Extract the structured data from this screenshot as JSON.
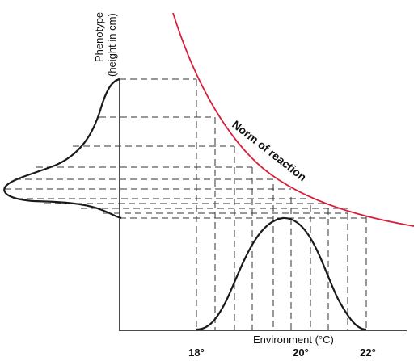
{
  "labels": {
    "y_axis_line1": "Phenotype",
    "y_axis_line2": "(height in cm)",
    "x_axis": "Environment (°C)",
    "curve_label": "Norm of reaction"
  },
  "ticks": [
    "18°",
    "20°",
    "22°"
  ],
  "colors": {
    "norm_of_reaction": "#d8203a",
    "ink": "#1a1a1a"
  }
}
